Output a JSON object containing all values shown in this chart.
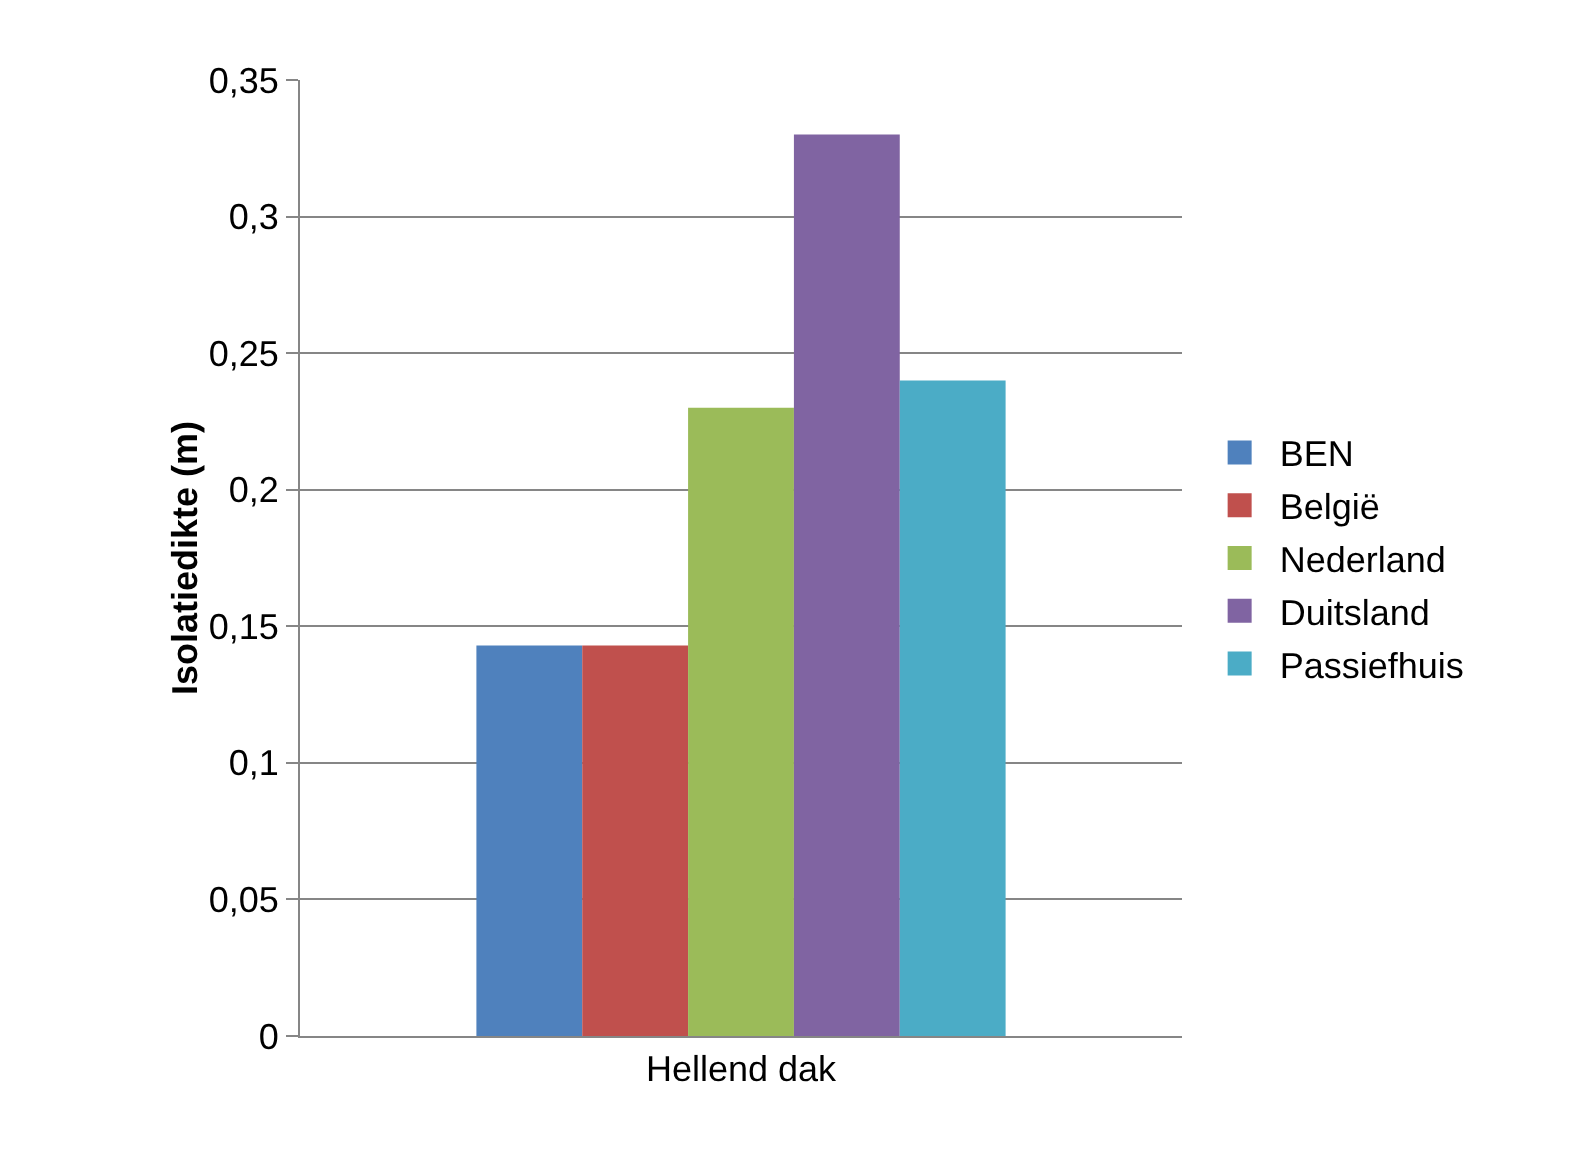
{
  "chart_data": {
    "type": "bar",
    "ylabel": "Isolatiedikte (m)",
    "categories": [
      "Hellend dak"
    ],
    "series": [
      {
        "name": "BEN",
        "color": "#4f81bd",
        "values": [
          0.143
        ]
      },
      {
        "name": "België",
        "color": "#c0504d",
        "values": [
          0.143
        ]
      },
      {
        "name": "Nederland",
        "color": "#9bbb59",
        "values": [
          0.23
        ]
      },
      {
        "name": "Duitsland",
        "color": "#8064a2",
        "values": [
          0.33
        ]
      },
      {
        "name": "Passiefhuis",
        "color": "#4bacc6",
        "values": [
          0.24
        ]
      }
    ],
    "ylim": [
      0,
      0.35
    ],
    "yticks": [
      {
        "value": 0,
        "label": "0"
      },
      {
        "value": 0.05,
        "label": "0,05"
      },
      {
        "value": 0.1,
        "label": "0,1"
      },
      {
        "value": 0.15,
        "label": "0,15"
      },
      {
        "value": 0.2,
        "label": "0,2"
      },
      {
        "value": 0.25,
        "label": "0,25"
      },
      {
        "value": 0.3,
        "label": "0,3"
      },
      {
        "value": 0.35,
        "label": "0,35"
      }
    ],
    "grid": "y",
    "legend": "right"
  }
}
